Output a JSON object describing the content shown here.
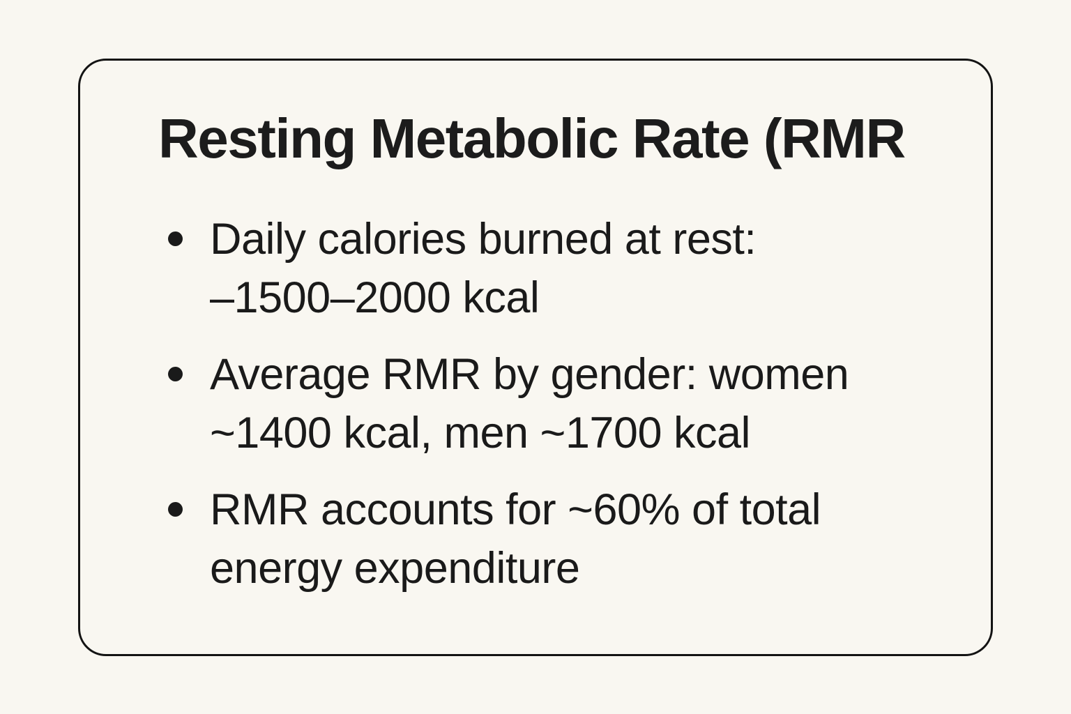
{
  "card": {
    "title": "Resting Metabolic Rate (RMR",
    "bullets": [
      {
        "text": "Daily calories burned at rest:\n–1500–2000 kcal"
      },
      {
        "text": "Average RMR by gender: women\n~1400 kcal, men ~1700 kcal"
      },
      {
        "text": "RMR accounts for ~60% of total\nenergy expenditure"
      }
    ],
    "colors": {
      "page_background": "#F9F7F1",
      "card_border": "#131313",
      "text": "#1A1A1A"
    }
  }
}
